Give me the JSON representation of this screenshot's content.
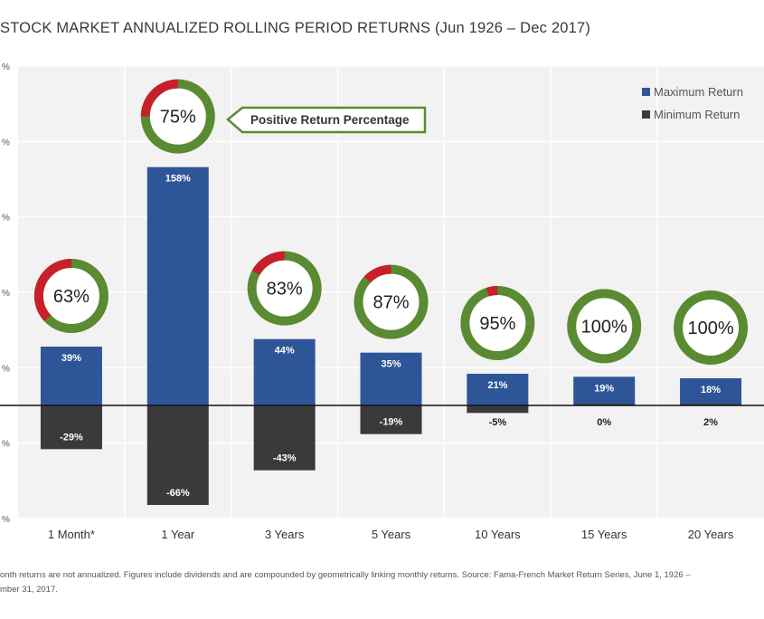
{
  "title": "STOCK MARKET ANNUALIZED ROLLING PERIOD RETURNS (Jun 1926 – Dec 2017)",
  "footnote": {
    "line1": "onth returns are not annualized. Figures include dividends and are compounded by geometrically linking monthly returns. Source:  Fama-French Market Return Series, June 1, 1926 –",
    "line2": "mber 31, 2017."
  },
  "colors": {
    "max": "#2e5597",
    "min": "#3a3a3a",
    "ring_positive": "#5a8a32",
    "ring_negative": "#c8202a",
    "grid_bg": "#f2f2f2"
  },
  "chart_data": {
    "type": "bar",
    "title": "STOCK MARKET ANNUALIZED ROLLING PERIOD RETURNS (Jun 1926 – Dec 2017)",
    "categories": [
      "1 Month*",
      "1 Year",
      "3 Years",
      "5 Years",
      "10 Years",
      "15 Years",
      "20 Years"
    ],
    "series": [
      {
        "name": "Maximum Return",
        "values": [
          39,
          158,
          44,
          35,
          21,
          19,
          18
        ],
        "labels": [
          "39%",
          "158%",
          "44%",
          "35%",
          "21%",
          "19%",
          "18%"
        ]
      },
      {
        "name": "Minimum Return",
        "values": [
          -29,
          -66,
          -43,
          -19,
          -5,
          0,
          2
        ],
        "labels": [
          "-29%",
          "-66%",
          "-43%",
          "-19%",
          "-5%",
          "0%",
          "2%"
        ]
      }
    ],
    "positive_return_percentage": [
      63,
      75,
      83,
      87,
      95,
      100,
      100
    ],
    "positive_labels": [
      "63%",
      "75%",
      "83%",
      "87%",
      "95%",
      "100%",
      "100%"
    ],
    "annotation": "Positive Return Percentage",
    "ylim": [
      -75,
      225
    ],
    "yticks": [
      -75,
      -25,
      25,
      75,
      125,
      175,
      225
    ],
    "ytick_labels": [
      "%",
      "%",
      "%",
      "%",
      "%",
      "%",
      "%"
    ],
    "legend": [
      "Maximum Return",
      "Minimum Return"
    ],
    "legend_position": "top-right",
    "xlabel": "",
    "ylabel": "",
    "grid": true
  }
}
